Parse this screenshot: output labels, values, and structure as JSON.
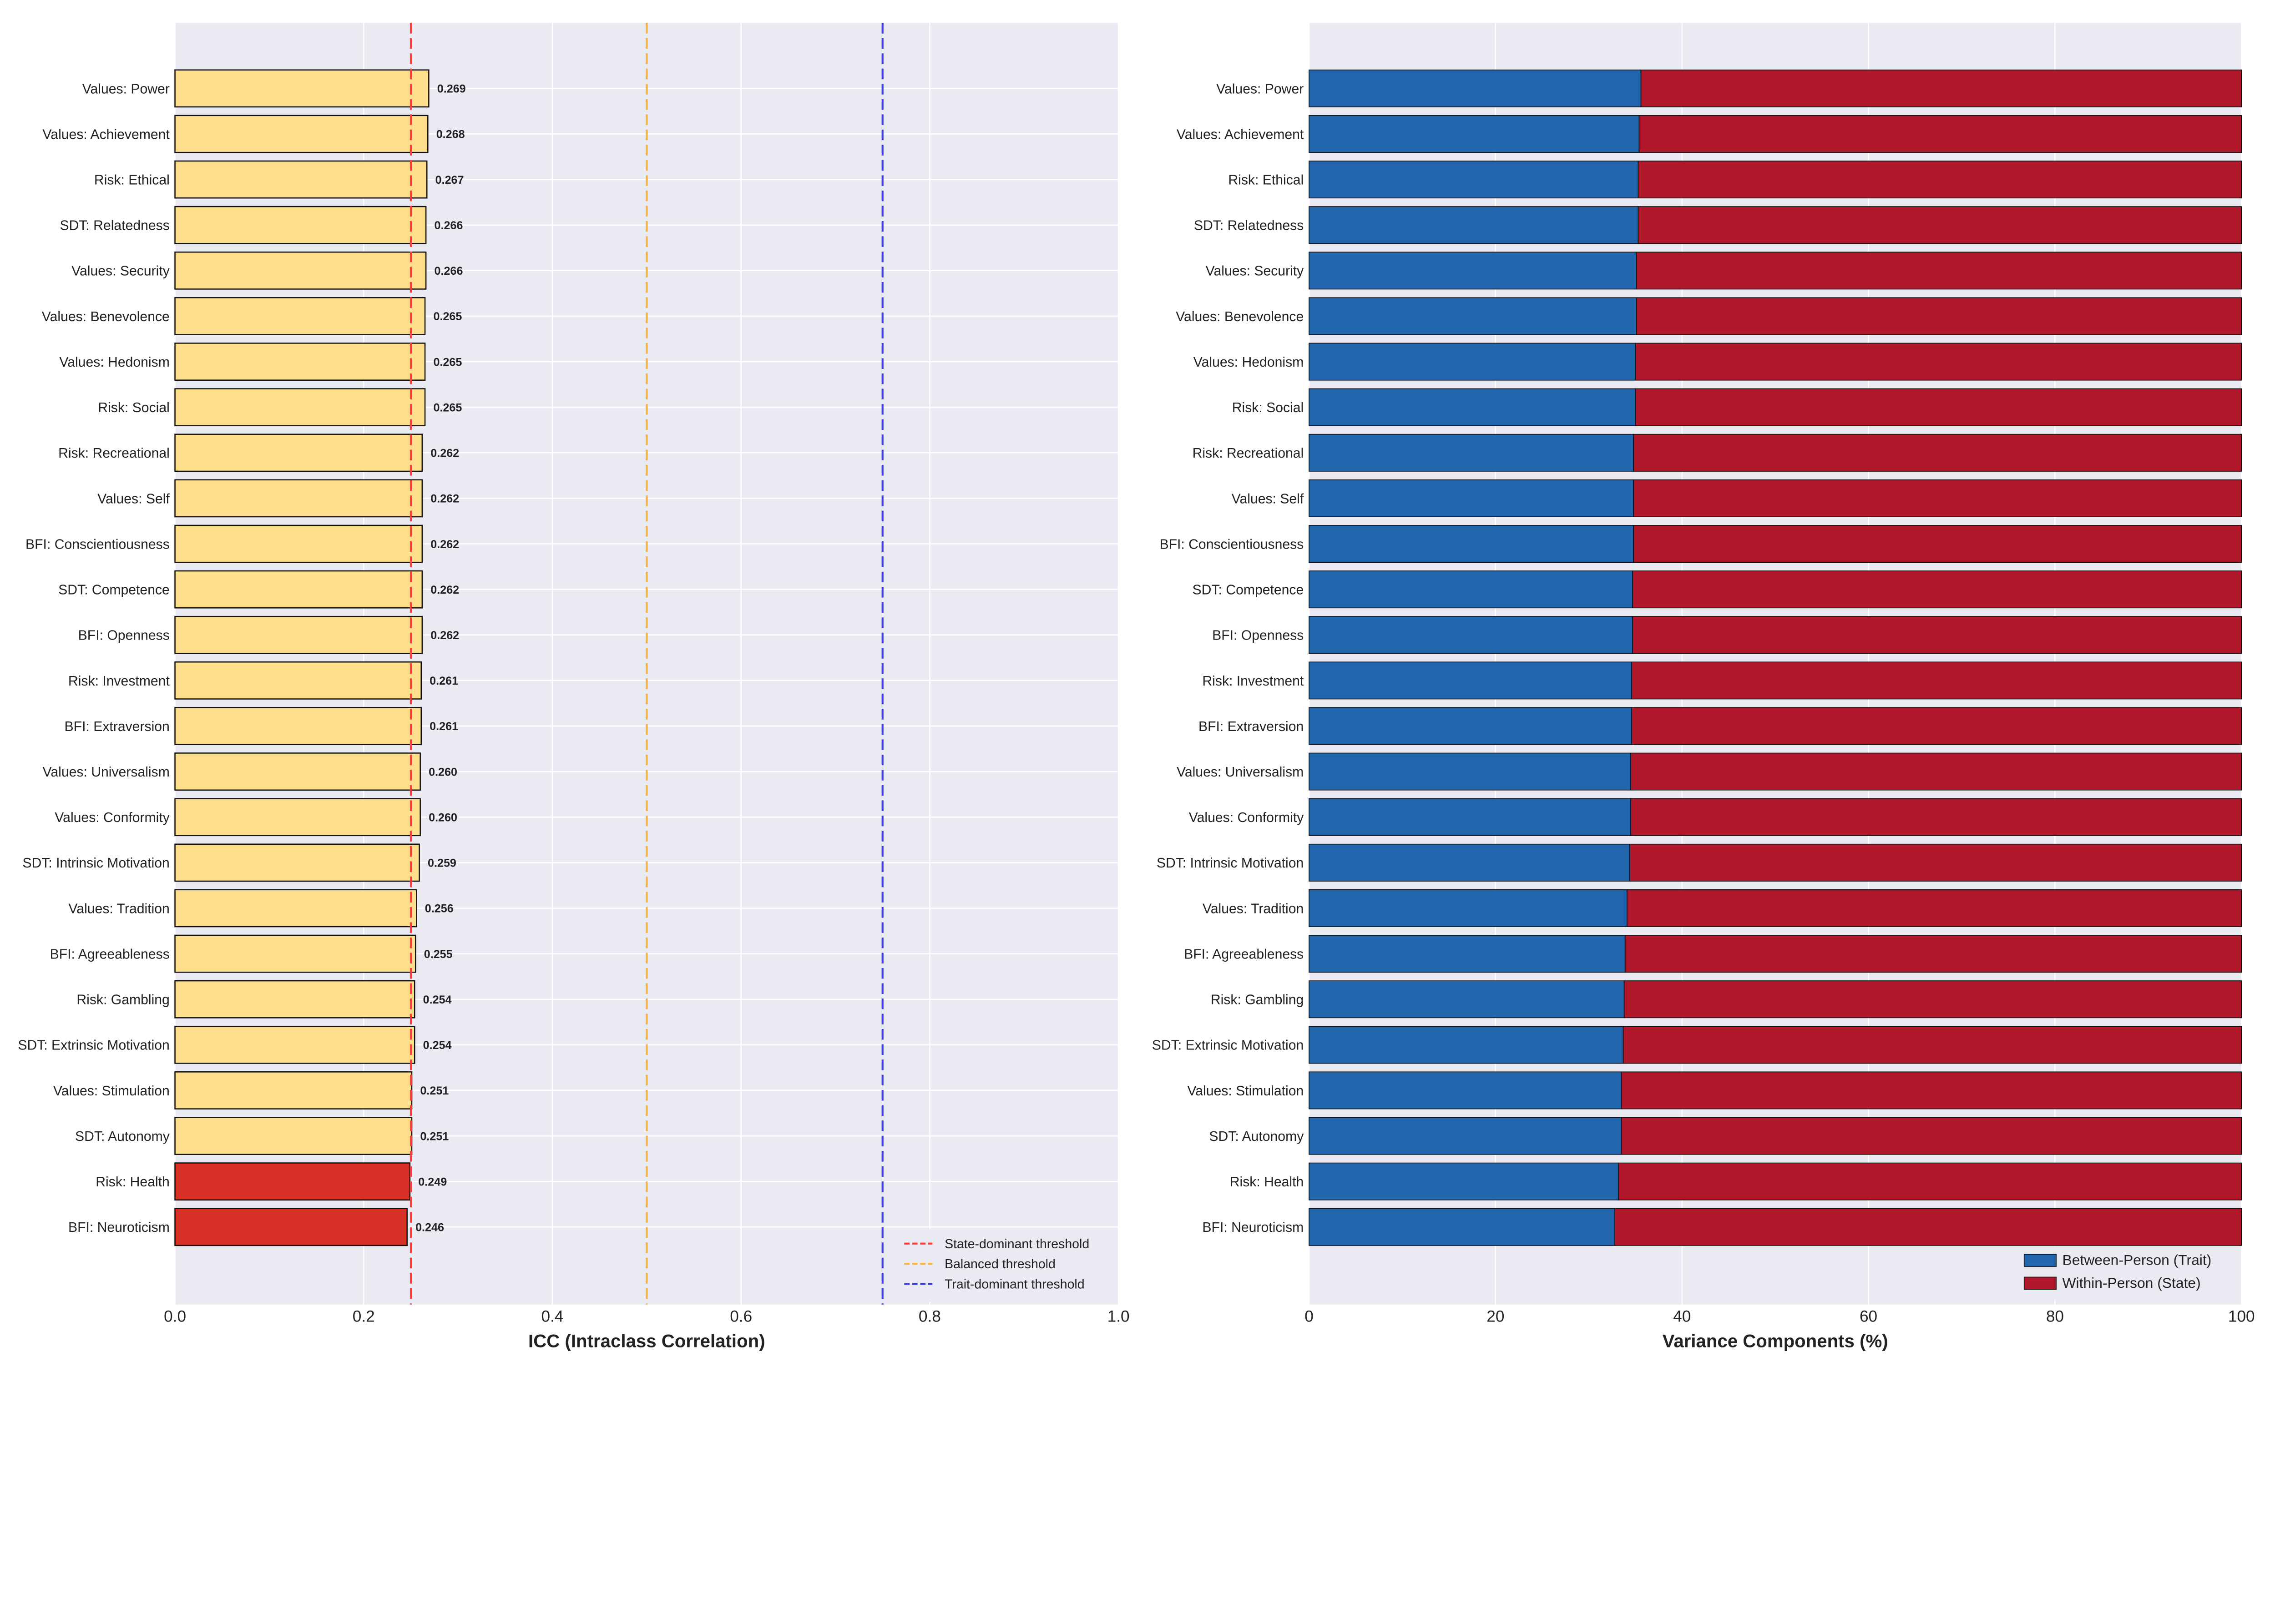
{
  "chart_data": [
    {
      "type": "bar",
      "orientation": "horizontal",
      "xlabel": "ICC (Intraclass Correlation)",
      "xlim": [
        0,
        1.0
      ],
      "xticks": [
        "0.0",
        "0.2",
        "0.4",
        "0.6",
        "0.8",
        "1.0"
      ],
      "grid": true,
      "categories": [
        "Values: Power",
        "Values: Achievement",
        "Risk: Ethical",
        "SDT: Relatedness",
        "Values: Security",
        "Values: Benevolence",
        "Values: Hedonism",
        "Risk: Social",
        "Risk: Recreational",
        "Values: Self",
        "BFI: Conscientiousness",
        "SDT: Competence",
        "BFI: Openness",
        "Risk: Investment",
        "BFI: Extraversion",
        "Values: Universalism",
        "Values: Conformity",
        "SDT: Intrinsic Motivation",
        "Values: Tradition",
        "BFI: Agreeableness",
        "Risk: Gambling",
        "SDT: Extrinsic Motivation",
        "Values: Stimulation",
        "SDT: Autonomy",
        "Risk: Health",
        "BFI: Neuroticism"
      ],
      "values": [
        0.269,
        0.268,
        0.267,
        0.266,
        0.266,
        0.265,
        0.265,
        0.265,
        0.262,
        0.262,
        0.262,
        0.262,
        0.262,
        0.261,
        0.261,
        0.26,
        0.26,
        0.259,
        0.256,
        0.255,
        0.254,
        0.254,
        0.251,
        0.251,
        0.249,
        0.246
      ],
      "data_labels": [
        "0.269",
        "0.268",
        "0.267",
        "0.266",
        "0.266",
        "0.265",
        "0.265",
        "0.265",
        "0.262",
        "0.262",
        "0.262",
        "0.262",
        "0.262",
        "0.261",
        "0.261",
        "0.260",
        "0.260",
        "0.259",
        "0.256",
        "0.255",
        "0.254",
        "0.254",
        "0.251",
        "0.251",
        "0.249",
        "0.246"
      ],
      "bar_colors": {
        "above_state_threshold": "#FDDE8B",
        "below_state_threshold": "#D73027"
      },
      "thresholds": [
        {
          "name": "State-dominant threshold",
          "value": 0.25,
          "color": "#FF3B3B"
        },
        {
          "name": "Balanced threshold",
          "value": 0.5,
          "color": "#F5B042"
        },
        {
          "name": "Trait-dominant threshold",
          "value": 0.75,
          "color": "#3B3BE0"
        }
      ],
      "legend_position": "lower-right"
    },
    {
      "type": "bar",
      "orientation": "horizontal",
      "stacked": true,
      "xlabel": "Variance Components (%)",
      "xlim": [
        0,
        100
      ],
      "xticks": [
        "0",
        "20",
        "40",
        "60",
        "80",
        "100"
      ],
      "grid": true,
      "categories": [
        "Values: Power",
        "Values: Achievement",
        "Risk: Ethical",
        "SDT: Relatedness",
        "Values: Security",
        "Values: Benevolence",
        "Values: Hedonism",
        "Risk: Social",
        "Risk: Recreational",
        "Values: Self",
        "BFI: Conscientiousness",
        "SDT: Competence",
        "BFI: Openness",
        "Risk: Investment",
        "BFI: Extraversion",
        "Values: Universalism",
        "Values: Conformity",
        "SDT: Intrinsic Motivation",
        "Values: Tradition",
        "BFI: Agreeableness",
        "Risk: Gambling",
        "SDT: Extrinsic Motivation",
        "Values: Stimulation",
        "SDT: Autonomy",
        "Risk: Health",
        "BFI: Neuroticism"
      ],
      "series": [
        {
          "name": "Between-Person (Trait)",
          "color": "#2166AC",
          "values": [
            35.6,
            35.4,
            35.3,
            35.3,
            35.1,
            35.1,
            35.0,
            35.0,
            34.8,
            34.8,
            34.8,
            34.7,
            34.7,
            34.6,
            34.6,
            34.5,
            34.5,
            34.4,
            34.1,
            33.9,
            33.8,
            33.7,
            33.5,
            33.5,
            33.2,
            32.8
          ]
        },
        {
          "name": "Within-Person (State)",
          "color": "#B2182B",
          "values": [
            64.4,
            64.6,
            64.7,
            64.7,
            64.9,
            64.9,
            65.0,
            65.0,
            65.2,
            65.2,
            65.2,
            65.3,
            65.3,
            65.4,
            65.4,
            65.5,
            65.5,
            65.6,
            65.9,
            66.1,
            66.2,
            66.3,
            66.5,
            66.5,
            66.8,
            67.2
          ]
        }
      ],
      "legend_position": "lower-right"
    }
  ]
}
